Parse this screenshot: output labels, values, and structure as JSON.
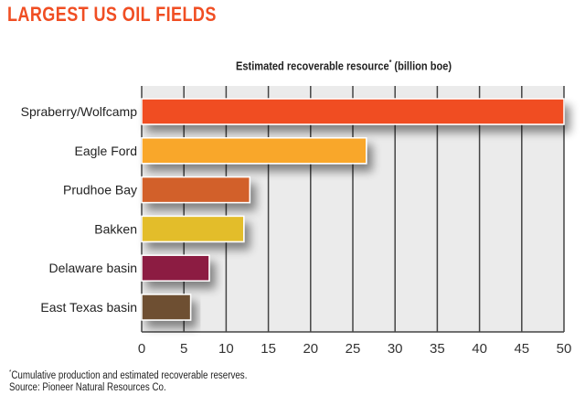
{
  "chart_data": {
    "type": "bar",
    "orientation": "horizontal",
    "title": "LARGEST US OIL FIELDS",
    "xlabel": "Estimated recoverable resource",
    "xlabel_marker": "*",
    "xlabel_units": "(billion boe)",
    "ylabel": "",
    "categories": [
      "Spraberry/Wolfcamp",
      "Eagle Ford",
      "Prudhoe Bay",
      "Bakken",
      "Delaware basin",
      "East Texas basin"
    ],
    "values": [
      50,
      26.6,
      12.8,
      12.1,
      8.0,
      5.8
    ],
    "colors": [
      "#f04e23",
      "#f9a72b",
      "#d2602a",
      "#e3bd2a",
      "#8c1a42",
      "#6e5033"
    ],
    "xlim": [
      0,
      50
    ],
    "xticks": [
      "0",
      "5",
      "10",
      "15",
      "20",
      "25",
      "30",
      "35",
      "40",
      "45",
      "50"
    ],
    "grid": true
  },
  "footnote": {
    "marker": "*",
    "text": "Cumulative production and estimated recoverable reserves.",
    "source": "Source: Pioneer Natural Resources Co."
  }
}
